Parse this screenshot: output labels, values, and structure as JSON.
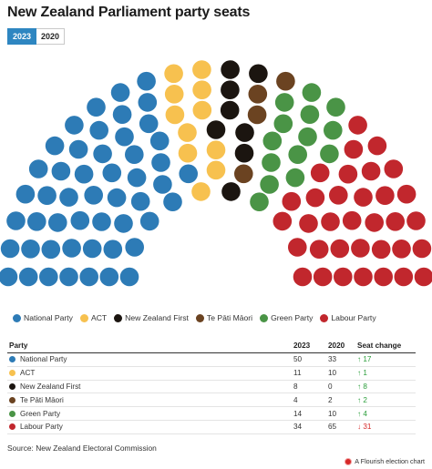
{
  "title": "New Zealand Parliament party seats",
  "tabs": [
    {
      "label": "2023",
      "active": true
    },
    {
      "label": "2020",
      "active": false
    }
  ],
  "table": {
    "headers": {
      "party": "Party",
      "y2023": "2023",
      "y2020": "2020",
      "change": "Seat change"
    },
    "rows": [
      {
        "party": "National Party",
        "y2023": "50",
        "y2020": "33",
        "change": "↑ 17",
        "trend": "up",
        "color": "#2d7bb6"
      },
      {
        "party": "ACT",
        "y2023": "11",
        "y2020": "10",
        "change": "↑ 1",
        "trend": "up",
        "color": "#f7c14f"
      },
      {
        "party": "New Zealand First",
        "y2023": "8",
        "y2020": "0",
        "change": "↑ 8",
        "trend": "up",
        "color": "#1b1510"
      },
      {
        "party": "Te Pāti Māori",
        "y2023": "4",
        "y2020": "2",
        "change": "↑ 2",
        "trend": "up",
        "color": "#6b4321"
      },
      {
        "party": "Green Party",
        "y2023": "14",
        "y2020": "10",
        "change": "↑ 4",
        "trend": "up",
        "color": "#4a9446"
      },
      {
        "party": "Labour Party",
        "y2023": "34",
        "y2020": "65",
        "change": "↓ 31",
        "trend": "down",
        "color": "#c1272d"
      }
    ]
  },
  "source": "Source: New Zealand Electoral Commission",
  "credit": "A Flourish election chart",
  "chart_data": {
    "type": "parliament",
    "year": "2023",
    "total_seats": 121,
    "series": [
      {
        "name": "National Party",
        "value": 50,
        "color": "#2d7bb6"
      },
      {
        "name": "ACT",
        "value": 11,
        "color": "#f7c14f"
      },
      {
        "name": "New Zealand First",
        "value": 8,
        "color": "#1b1510"
      },
      {
        "name": "Te Pāti Māori",
        "value": 4,
        "color": "#6b4321"
      },
      {
        "name": "Green Party",
        "value": 14,
        "color": "#4a9446"
      },
      {
        "name": "Labour Party",
        "value": 34,
        "color": "#c1272d"
      }
    ],
    "legend_position": "bottom"
  }
}
